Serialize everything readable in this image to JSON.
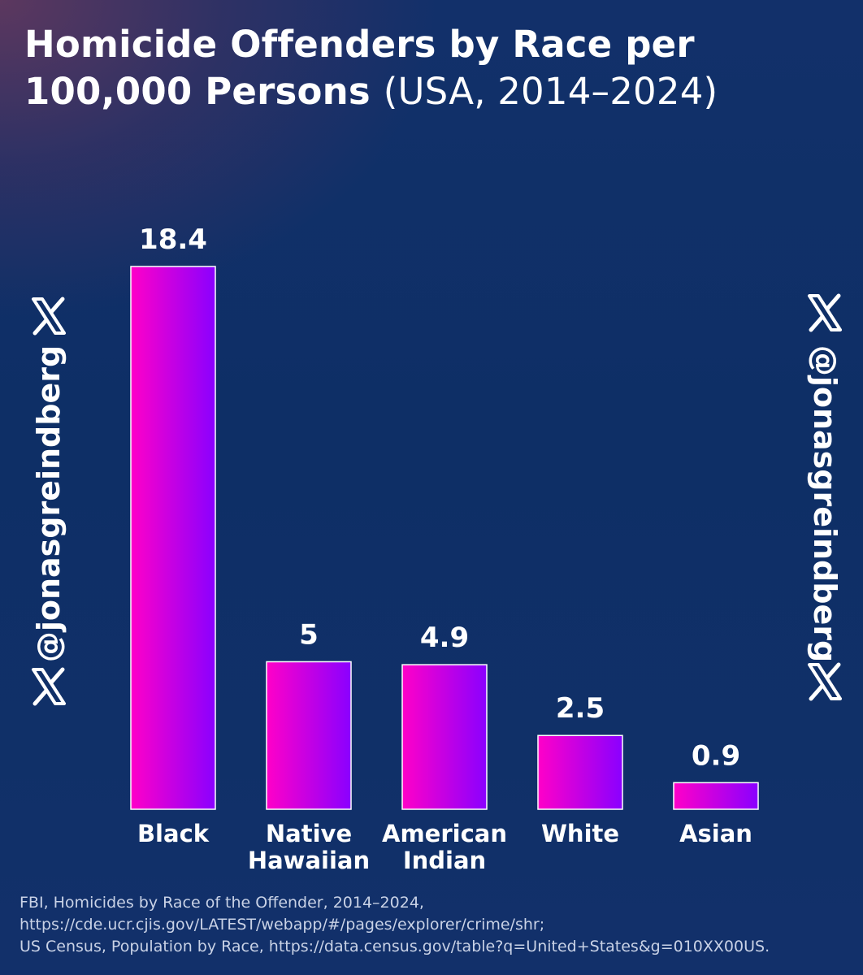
{
  "chart_data": {
    "type": "bar",
    "title": "Homicide Offenders by Race per 100,000 Persons",
    "subtitle": "(USA, 2014–2024)",
    "categories": [
      "Black",
      "Native Hawaiian",
      "American Indian",
      "White",
      "Asian"
    ],
    "category_lines": [
      [
        "Black"
      ],
      [
        "Native",
        "Hawaiian"
      ],
      [
        "American",
        "Indian"
      ],
      [
        "White"
      ],
      [
        "Asian"
      ]
    ],
    "values": [
      18.4,
      5,
      4.9,
      2.5,
      0.9
    ],
    "value_labels": [
      "18.4",
      "5",
      "4.9",
      "2.5",
      "0.9"
    ],
    "xlabel": "",
    "ylabel": "",
    "ylim": [
      0,
      18.4
    ],
    "grid": false,
    "legend": "none",
    "bar_gradient": [
      "#ff00c8",
      "#8a00ff"
    ]
  },
  "watermark": {
    "handle": "@jonasgreindberg",
    "icon": "x-logo-icon"
  },
  "source": {
    "lines": [
      "FBI, Homicides by Race of the Offender, 2014–2024,",
      "https://cde.ucr.cjis.gov/LATEST/webapp/#/pages/explorer/crime/shr;",
      "US Census, Population by Race, https://data.census.gov/table?q=United+States&g=010XX00US."
    ]
  },
  "colors": {
    "background": "#0e2f66",
    "text": "#ffffff",
    "source_text": "#c9d2e6"
  }
}
